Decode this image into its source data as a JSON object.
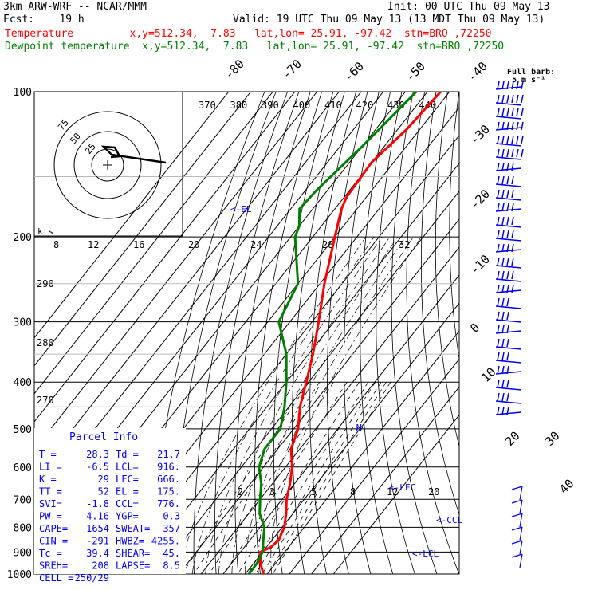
{
  "header": {
    "model": "3km ARW-WRF -- NCAR/MMM",
    "init": "Init: 00 UTC Thu 09 May 13",
    "fcst": "Fcst:    19 h",
    "valid": "Valid: 19 UTC Thu 09 May 13 (13 MDT Thu 09 May 13)",
    "temp_line": "Temperature         x,y=512.34,  7.83   lat,lon= 25.91, -97.42  stn=BRO ,72250",
    "dew_line": "Dewpoint temperature  x,y=512.34,  7.83   lat,lon= 25.91, -97.42  stn=BRO ,72250"
  },
  "colors": {
    "temperature": "#ff0000",
    "dewpoint": "#008000",
    "label": "#0000ff",
    "grid": "#000000"
  },
  "barb_legend": {
    "title": "Full barb:",
    "unit": "5 m s⁻¹"
  },
  "hodograph": {
    "unit": "kts",
    "ring_labels": [
      "25",
      "50",
      "75"
    ]
  },
  "labels": {
    "el": "<-EL",
    "lfc": "<-LFC",
    "ccl": "<-CCL",
    "lcl": "<-LCL",
    "m": "M"
  },
  "parcel": {
    "title": "Parcel Info",
    "rows": [
      [
        "T  =",
        "28.3",
        "Td =",
        "21.7"
      ],
      [
        "LI =",
        "-6.5",
        "LCL=",
        "916."
      ],
      [
        "K  =",
        "29",
        "LFC=",
        "666."
      ],
      [
        "TT =",
        "52",
        "EL =",
        "175."
      ],
      [
        "SVI=",
        "-1.8",
        "CCL=",
        "776."
      ],
      [
        "PW =",
        "4.16",
        "YGP=",
        "0.3"
      ],
      [
        "CAPE=",
        "1654",
        "SWEAT=",
        "357"
      ],
      [
        "CIN =",
        "-291",
        "HWBZ=",
        "4255."
      ],
      [
        "Tc =",
        "39.4",
        "SHEAR=",
        "45."
      ],
      [
        "SREH=",
        "208",
        "LAPSE=",
        "8.5"
      ],
      [
        "CELL =",
        "250/29",
        "",
        ""
      ]
    ]
  },
  "chart_data": {
    "type": "line",
    "title": "",
    "pressure_levels": [
      100,
      200,
      300,
      400,
      500,
      600,
      700,
      800,
      900,
      1000
    ],
    "isotherms_left": [
      "-80",
      "-70",
      "-60",
      "-50",
      "-40"
    ],
    "isotherms_right": [
      "-30",
      "-20",
      "-10",
      "0",
      "10",
      "20",
      "30",
      "40"
    ],
    "theta_labels": [
      "370",
      "380",
      "390",
      "400",
      "410",
      "420",
      "430",
      "440"
    ],
    "theta_low_labels": [
      "290",
      "280",
      "270"
    ],
    "mixing_ratio_top": [
      "8",
      "12",
      "16",
      "20",
      "24",
      "28",
      "32"
    ],
    "mixing_ratio_bottom": [
      "2",
      "3",
      "5",
      "8",
      "12",
      "20"
    ],
    "series": [
      {
        "name": "Temperature",
        "points": [
          [
            100,
            -64
          ],
          [
            120,
            -66
          ],
          [
            140,
            -70
          ],
          [
            165,
            -69
          ],
          [
            175,
            -67
          ],
          [
            200,
            -60
          ],
          [
            250,
            -48
          ],
          [
            300,
            -37
          ],
          [
            350,
            -28
          ],
          [
            400,
            -21
          ],
          [
            450,
            -15
          ],
          [
            500,
            -8
          ],
          [
            550,
            -4
          ],
          [
            600,
            3
          ],
          [
            650,
            8
          ],
          [
            700,
            12
          ],
          [
            750,
            17
          ],
          [
            800,
            21
          ],
          [
            850,
            23
          ],
          [
            880,
            22
          ],
          [
            900,
            19
          ],
          [
            950,
            23
          ],
          [
            1000,
            28.3
          ]
        ]
      },
      {
        "name": "Dewpoint temperature",
        "points": [
          [
            100,
            -75
          ],
          [
            130,
            -80
          ],
          [
            160,
            -85
          ],
          [
            175,
            -86
          ],
          [
            190,
            -80
          ],
          [
            200,
            -78
          ],
          [
            250,
            -60
          ],
          [
            300,
            -55
          ],
          [
            350,
            -40
          ],
          [
            400,
            -30
          ],
          [
            450,
            -22
          ],
          [
            500,
            -16
          ],
          [
            550,
            -16
          ],
          [
            600,
            -12
          ],
          [
            650,
            -5
          ],
          [
            700,
            0
          ],
          [
            750,
            5
          ],
          [
            800,
            12
          ],
          [
            850,
            16
          ],
          [
            900,
            20
          ],
          [
            950,
            21.5
          ],
          [
            1000,
            21.7
          ]
        ]
      }
    ]
  }
}
